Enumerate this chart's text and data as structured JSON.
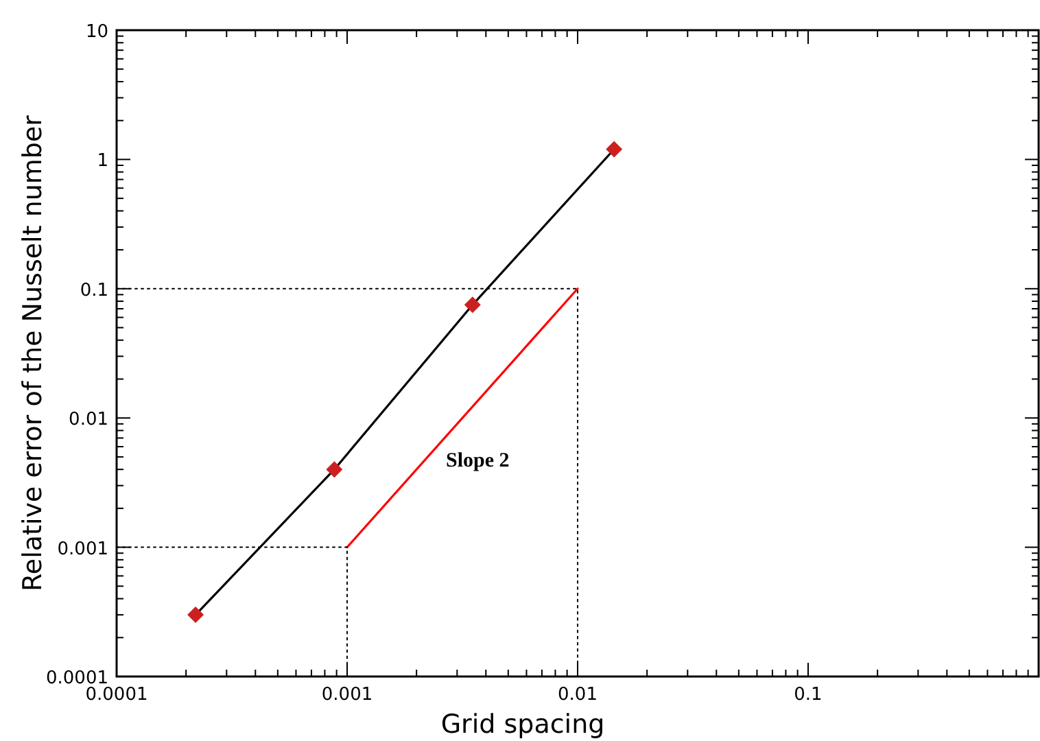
{
  "chart_data": {
    "type": "line",
    "xlabel": "Grid spacing",
    "ylabel": "Relative error of the Nusselt number",
    "log": "xy",
    "grid": false,
    "xlim": [
      0.0001,
      1
    ],
    "xticks": [
      0.0001,
      0.001,
      0.01,
      0.1
    ],
    "ylim": [
      0.0001,
      10
    ],
    "yticks": [
      0.0001,
      0.001,
      0.01,
      0.1,
      1,
      10
    ],
    "series": [
      {
        "color": "#000000",
        "marker": "none",
        "line_style": "solid",
        "x": [
          0.00022,
          0.00088,
          0.0035,
          0.0144
        ],
        "values": [
          0.0003,
          0.004,
          0.075,
          1.2
        ]
      },
      {
        "type": "scatter",
        "color": "#cc2020",
        "marker": "diamond",
        "x": [
          0.00022,
          0.00088,
          0.0035,
          0.0144
        ],
        "values": [
          0.0003,
          0.004,
          0.075,
          1.2
        ]
      },
      {
        "type": "line",
        "color": "#ff0000",
        "marker": "none",
        "line_style": "solid",
        "x": [
          0.001,
          0.01
        ],
        "values": [
          0.001,
          0.1
        ]
      },
      {
        "type": "line",
        "color": "#000000",
        "marker": "none",
        "line_style": "dotted",
        "x": [
          0.0001,
          0.01,
          0.01
        ],
        "values": [
          0.1,
          0.1,
          0.0001
        ]
      },
      {
        "type": "line",
        "color": "#000000",
        "marker": "none",
        "line_style": "dotted",
        "x": [
          0.0001,
          0.001,
          0.001
        ],
        "values": [
          0.001,
          0.001,
          0.0001
        ]
      }
    ],
    "annotations": [
      "Slope 2"
    ]
  }
}
